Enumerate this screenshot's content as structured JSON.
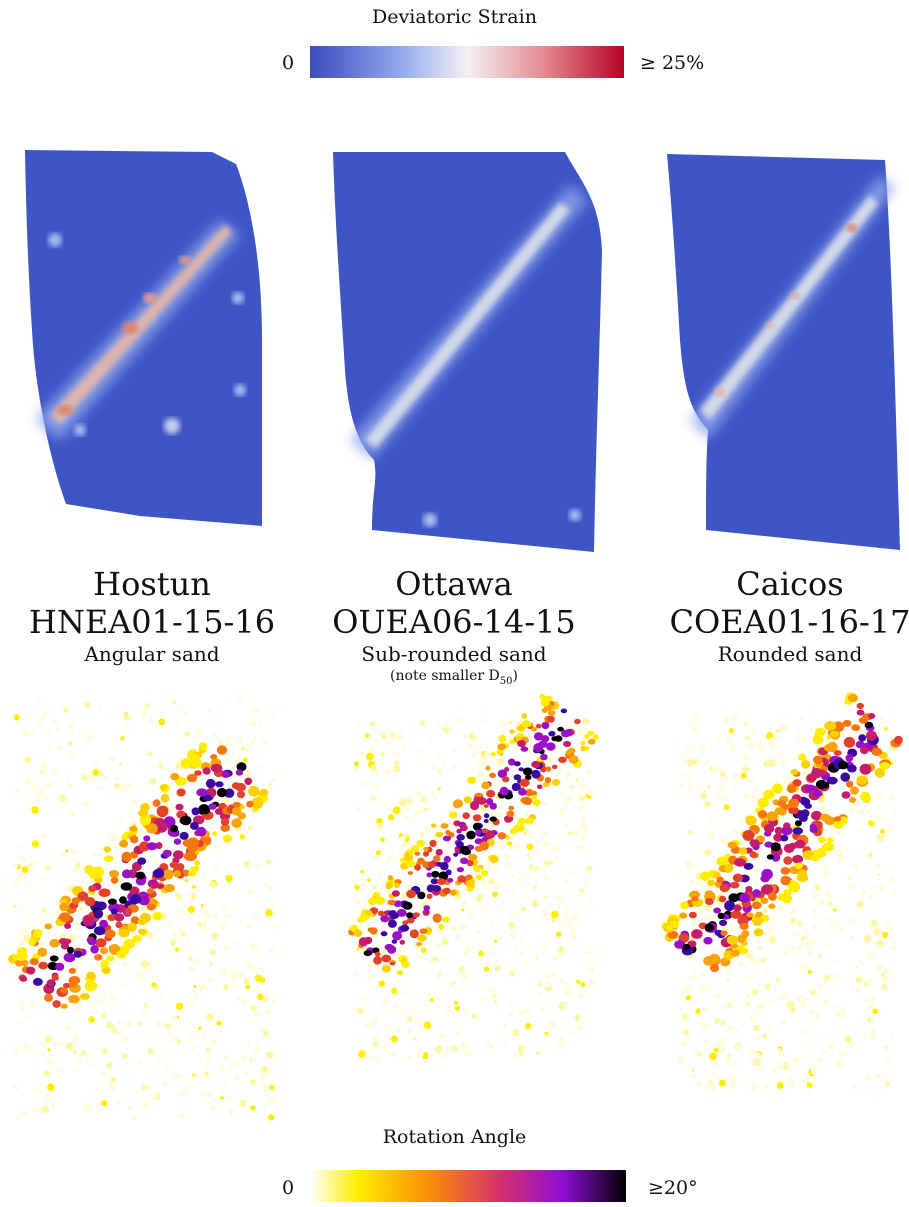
{
  "strain_colorbar": {
    "title": "Deviatoric Strain",
    "min_label": "0",
    "max_label": "≥ 25%",
    "colors": [
      "#3b4cc0",
      "#8fa6ec",
      "#f4f1f3",
      "#e58c93",
      "#b40426"
    ]
  },
  "samples": [
    {
      "name": "Hostun",
      "id": "HNEA01-15-16",
      "description": "Angular sand",
      "note": ""
    },
    {
      "name": "Ottawa",
      "id": "OUEA06-14-15",
      "description": "Sub-rounded sand",
      "note": "(note smaller D",
      "note_sub": "50",
      "note_end": ")"
    },
    {
      "name": "Caicos",
      "id": "COEA01-16-17",
      "description": "Rounded sand",
      "note": ""
    }
  ],
  "rotation_colorbar": {
    "title": "Rotation Angle",
    "min_label": "0",
    "max_label": "≥20°",
    "colors": [
      "#ffffff",
      "#ffee00",
      "#f98d09",
      "#d6316b",
      "#8f0fd4",
      "#000004"
    ]
  }
}
